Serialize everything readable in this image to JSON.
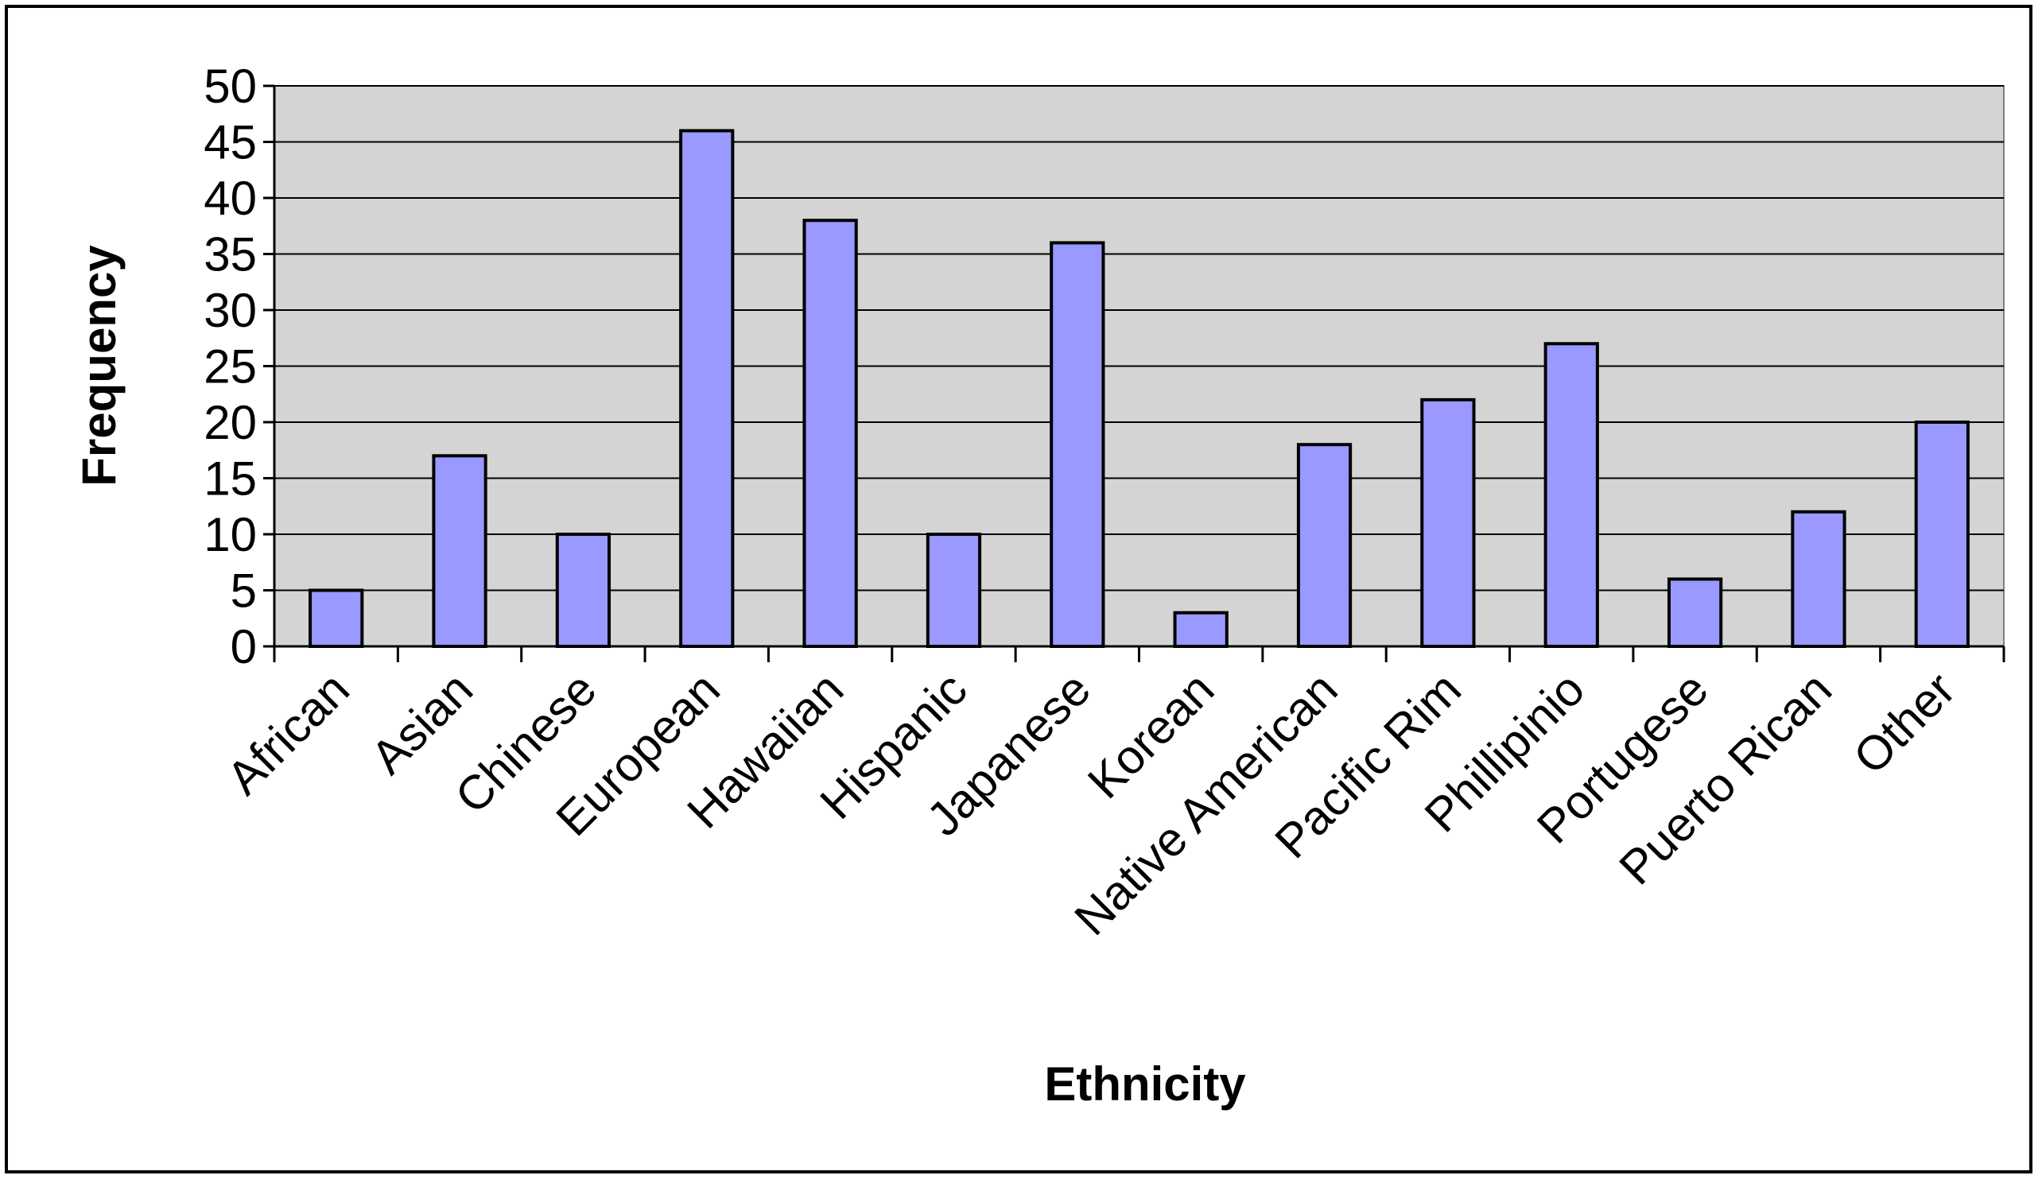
{
  "chart_data": {
    "type": "bar",
    "title": "",
    "xlabel": "Ethnicity",
    "ylabel": "Frequency",
    "ylim": [
      0,
      50
    ],
    "ytick_step": 5,
    "yticks": [
      "0",
      "5",
      "10",
      "15",
      "20",
      "25",
      "30",
      "35",
      "40",
      "45",
      "50"
    ],
    "grid": true,
    "legend": "none",
    "categories": [
      "African",
      "Asian",
      "Chinese",
      "European",
      "Hawaiian",
      "Hispanic",
      "Japanese",
      "Korean",
      "Native American",
      "Pacific Rim",
      "Phillipinio",
      "Portugese",
      "Puerto Rican",
      "Other"
    ],
    "values": [
      5,
      17,
      10,
      46,
      38,
      10,
      36,
      3,
      18,
      22,
      27,
      6,
      12,
      20
    ],
    "colors": {
      "bar_fill": "#9999ff",
      "bar_stroke": "#000000",
      "plot_background": "#d4d4d4",
      "grid": "#000000"
    }
  }
}
